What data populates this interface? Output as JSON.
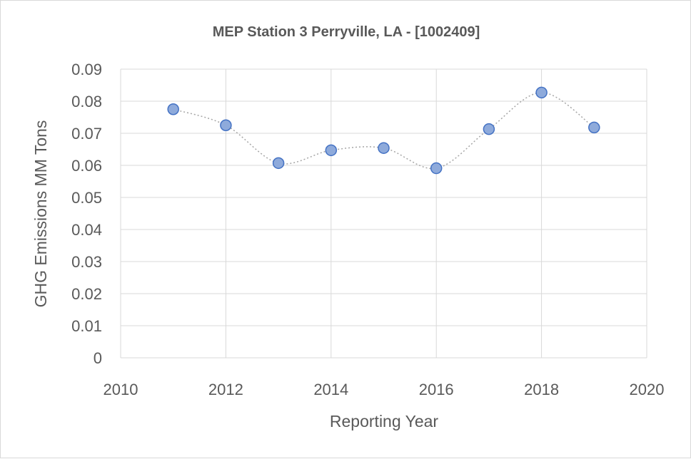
{
  "chart_data": {
    "type": "scatter",
    "title": "MEP Station 3 Perryville, LA - [1002409]",
    "xlabel": "Reporting Year",
    "ylabel": "GHG Emissions MM Tons",
    "xlim": [
      2010,
      2020
    ],
    "ylim": [
      0,
      0.09
    ],
    "x_ticks": [
      "2010",
      "2012",
      "2014",
      "2016",
      "2018",
      "2020"
    ],
    "y_ticks": [
      "0",
      "0.01",
      "0.02",
      "0.03",
      "0.04",
      "0.05",
      "0.06",
      "0.07",
      "0.08",
      "0.09"
    ],
    "grid": true,
    "line_style": "smoothed dotted",
    "marker_color": "#8eaadb",
    "marker_edge_color": "#4472c4",
    "line_color": "#a6a6a6",
    "series": [
      {
        "x": [
          2011,
          2012,
          2013,
          2014,
          2015,
          2016,
          2017,
          2018,
          2019
        ],
        "y": [
          0.0775,
          0.0725,
          0.0607,
          0.0647,
          0.0654,
          0.0591,
          0.0713,
          0.0827,
          0.0718
        ]
      }
    ]
  }
}
